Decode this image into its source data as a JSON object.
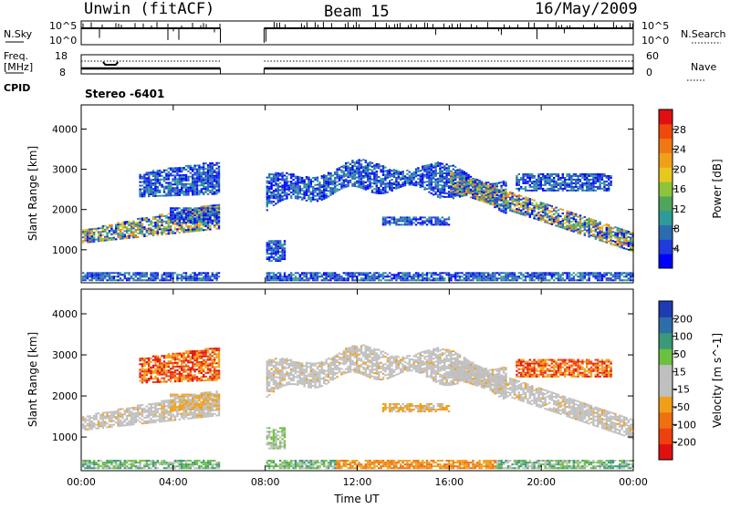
{
  "header": {
    "site": "Unwin (fitACF)",
    "beam": "Beam 15",
    "date": "16/May/2009"
  },
  "panels": {
    "nsky_label": "N.Sky",
    "nsky_top": "10^5",
    "nsky_bottom": "10^0",
    "nsearch_label": "N.Search",
    "nsearch_top": "10^5",
    "nsearch_bottom": "10^0",
    "freq_label": "Freq.",
    "freq_units": "[MHz]",
    "freq_top": "18",
    "freq_bottom": "8",
    "nave_label": "Nave",
    "nave_top": "60",
    "nave_bottom": "0",
    "cpid_label": "CPID",
    "cpid_value": "Stereo -6401"
  },
  "colors": {
    "power": [
      "#0000ff",
      "#1f3bdc",
      "#2b6cb0",
      "#2e9a9a",
      "#4fa55a",
      "#8fc43a",
      "#e6c81e",
      "#f0a018",
      "#f07814",
      "#f04a0a",
      "#e01010"
    ],
    "velocity": [
      "#1f3bb3",
      "#2e6ea8",
      "#3a9a78",
      "#6cc040",
      "#bfbfbf",
      "#c0c0c0",
      "#f0a018",
      "#f07010",
      "#f04010",
      "#e01010"
    ]
  },
  "chart_data": [
    {
      "type": "heatmap",
      "title": "",
      "ylabel": "Slant Range [km]",
      "ylim": [
        180,
        4600
      ],
      "yticks": [
        "1000",
        "2000",
        "3000",
        "4000"
      ],
      "colorbar": {
        "label": "Power [dB]",
        "ticks": [
          "4",
          "8",
          "12",
          "16",
          "20",
          "24",
          "28"
        ]
      }
    },
    {
      "type": "heatmap",
      "title": "",
      "xlabel": "Time UT",
      "ylabel": "Slant Range [km]",
      "ylim": [
        180,
        4600
      ],
      "xlim": [
        "00:00",
        "24:00"
      ],
      "xticks": [
        "00:00",
        "04:00",
        "08:00",
        "12:00",
        "16:00",
        "20:00",
        "00:00"
      ],
      "yticks": [
        "1000",
        "2000",
        "3000",
        "4000"
      ],
      "colorbar": {
        "label": "Velocity [m s^-1]",
        "ticks": [
          "200",
          "100",
          "50",
          "15",
          "-15",
          "-50",
          "-100",
          "-200"
        ]
      }
    }
  ]
}
